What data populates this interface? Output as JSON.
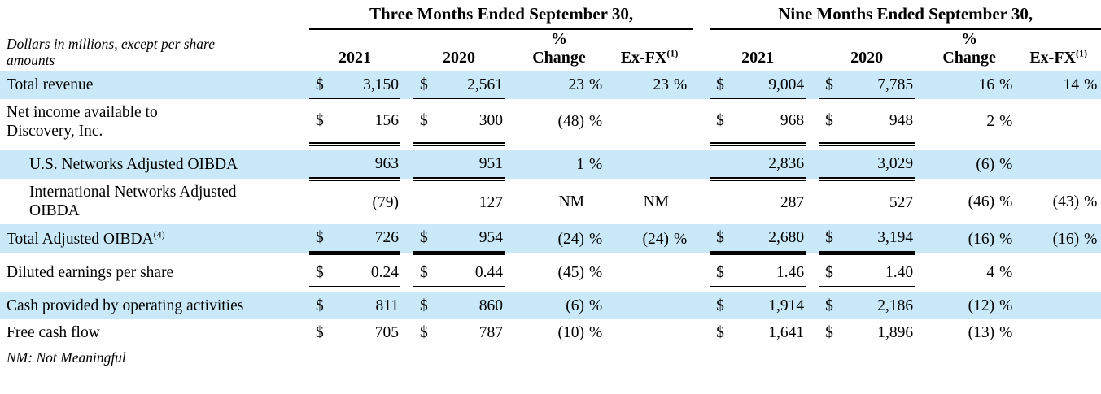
{
  "colors": {
    "row_highlight": "#c9e8f8",
    "text": "#000000",
    "page_background": "#ffffff"
  },
  "table": {
    "units_note": "Dollars in millions, except per share amounts",
    "footnote": "NM: Not Meaningful",
    "column_groups": {
      "three_months": "Three Months Ended September 30,",
      "nine_months": "Nine Months Ended September 30,"
    },
    "columns": {
      "year_2021": "2021",
      "year_2020": "2020",
      "pct_change": "% Change",
      "exfx": "Ex-FX",
      "exfx_sup": "(1)"
    },
    "rows": [
      {
        "label": "Total revenue",
        "label_sup": "",
        "three_months": {
          "usd_2021": "$",
          "val_2021": "3,150",
          "usd_2020": "$",
          "val_2020": "2,561",
          "pct_change": "23",
          "pct_sign": "%",
          "exfx": "23",
          "exfx_sign": "%"
        },
        "nine_months": {
          "usd_2021": "$",
          "val_2021": "9,004",
          "usd_2020": "$",
          "val_2020": "7,785",
          "pct_change": "16",
          "pct_sign": "%",
          "exfx": "14",
          "exfx_sign": "%"
        }
      },
      {
        "label": "Net income available to Discovery, Inc.",
        "label_sup": "",
        "three_months": {
          "usd_2021": "$",
          "val_2021": "156",
          "usd_2020": "$",
          "val_2020": "300",
          "pct_change": "(48)",
          "pct_sign": "%",
          "exfx": "",
          "exfx_sign": ""
        },
        "nine_months": {
          "usd_2021": "$",
          "val_2021": "968",
          "usd_2020": "$",
          "val_2020": "948",
          "pct_change": "2",
          "pct_sign": "%",
          "exfx": "",
          "exfx_sign": ""
        }
      },
      {
        "label": "U.S. Networks Adjusted OIBDA",
        "label_sup": "",
        "three_months": {
          "usd_2021": "",
          "val_2021": "963",
          "usd_2020": "",
          "val_2020": "951",
          "pct_change": "1",
          "pct_sign": "%",
          "exfx": "",
          "exfx_sign": ""
        },
        "nine_months": {
          "usd_2021": "",
          "val_2021": "2,836",
          "usd_2020": "",
          "val_2020": "3,029",
          "pct_change": "(6)",
          "pct_sign": "%",
          "exfx": "",
          "exfx_sign": ""
        }
      },
      {
        "label": "International Networks Adjusted OIBDA",
        "label_sup": "",
        "three_months": {
          "usd_2021": "",
          "val_2021": "(79)",
          "usd_2020": "",
          "val_2020": "127",
          "pct_change": "NM",
          "pct_sign": "",
          "exfx": "NM",
          "exfx_sign": ""
        },
        "nine_months": {
          "usd_2021": "",
          "val_2021": "287",
          "usd_2020": "",
          "val_2020": "527",
          "pct_change": "(46)",
          "pct_sign": "%",
          "exfx": "(43)",
          "exfx_sign": "%"
        }
      },
      {
        "label": "Total Adjusted OIBDA",
        "label_sup": "(4)",
        "three_months": {
          "usd_2021": "$",
          "val_2021": "726",
          "usd_2020": "$",
          "val_2020": "954",
          "pct_change": "(24)",
          "pct_sign": "%",
          "exfx": "(24)",
          "exfx_sign": "%"
        },
        "nine_months": {
          "usd_2021": "$",
          "val_2021": "2,680",
          "usd_2020": "$",
          "val_2020": "3,194",
          "pct_change": "(16)",
          "pct_sign": "%",
          "exfx": "(16)",
          "exfx_sign": "%"
        }
      },
      {
        "label": "Diluted earnings per share",
        "label_sup": "",
        "three_months": {
          "usd_2021": "$",
          "val_2021": "0.24",
          "usd_2020": "$",
          "val_2020": "0.44",
          "pct_change": "(45)",
          "pct_sign": "%",
          "exfx": "",
          "exfx_sign": ""
        },
        "nine_months": {
          "usd_2021": "$",
          "val_2021": "1.46",
          "usd_2020": "$",
          "val_2020": "1.40",
          "pct_change": "4",
          "pct_sign": "%",
          "exfx": "",
          "exfx_sign": ""
        }
      },
      {
        "label": "Cash provided by operating activities",
        "label_sup": "",
        "three_months": {
          "usd_2021": "$",
          "val_2021": "811",
          "usd_2020": "$",
          "val_2020": "860",
          "pct_change": "(6)",
          "pct_sign": "%",
          "exfx": "",
          "exfx_sign": ""
        },
        "nine_months": {
          "usd_2021": "$",
          "val_2021": "1,914",
          "usd_2020": "$",
          "val_2020": "2,186",
          "pct_change": "(12)",
          "pct_sign": "%",
          "exfx": "",
          "exfx_sign": ""
        }
      },
      {
        "label": "Free cash flow",
        "label_sup": "",
        "three_months": {
          "usd_2021": "$",
          "val_2021": "705",
          "usd_2020": "$",
          "val_2020": "787",
          "pct_change": "(10)",
          "pct_sign": "%",
          "exfx": "",
          "exfx_sign": ""
        },
        "nine_months": {
          "usd_2021": "$",
          "val_2021": "1,641",
          "usd_2020": "$",
          "val_2020": "1,896",
          "pct_change": "(13)",
          "pct_sign": "%",
          "exfx": "",
          "exfx_sign": ""
        }
      }
    ]
  }
}
